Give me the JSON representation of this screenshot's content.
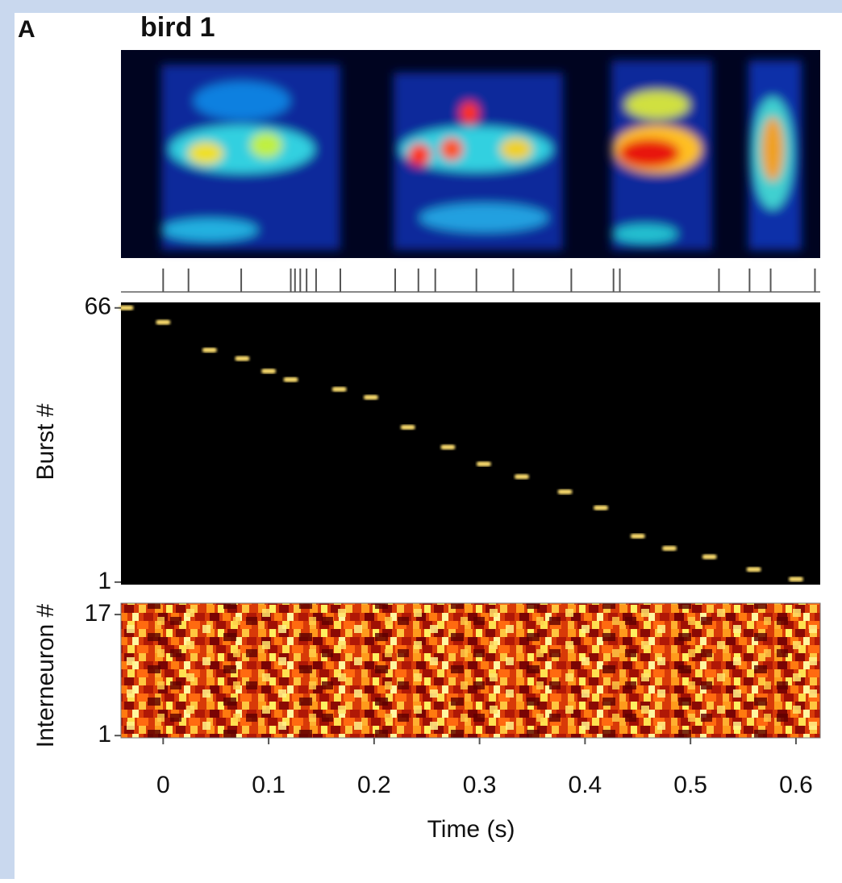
{
  "panel_label": "A",
  "title": "bird 1",
  "chart_data": [
    {
      "type": "event",
      "x": [
        0,
        0.024,
        0.074,
        0.121,
        0.125,
        0.13,
        0.136,
        0.145,
        0.168,
        0.22,
        0.242,
        0.258,
        0.297,
        0.332,
        0.387,
        0.427,
        0.433,
        0.527,
        0.556,
        0.576,
        0.618
      ],
      "xlim": [
        -0.04,
        0.623
      ],
      "color": "#555555"
    },
    {
      "type": "scatter",
      "ylabel": "Burst #",
      "x": [
        -0.035,
        0,
        0.044,
        0.075,
        0.1,
        0.121,
        0.167,
        0.197,
        0.232,
        0.27,
        0.304,
        0.34,
        0.381,
        0.415,
        0.45,
        0.48,
        0.518,
        0.56,
        0.6
      ],
      "y": [
        66,
        62.6,
        56,
        54,
        51,
        49,
        46.7,
        44.8,
        37.7,
        33,
        29,
        26,
        22.4,
        18.6,
        11.9,
        9,
        7,
        4,
        1.7
      ],
      "xlim": [
        -0.04,
        0.623
      ],
      "ylim": [
        0.4,
        67.3
      ],
      "yticks": [
        1,
        66
      ],
      "color": "#ffe070"
    },
    {
      "type": "heatmap",
      "ylabel": "Interneuron #",
      "xlabel": "Time (s)",
      "xlim": [
        -0.04,
        0.623
      ],
      "ylim": [
        0.7,
        18.5
      ],
      "yticks": [
        1,
        17
      ],
      "xticks": [
        0,
        0.1,
        0.2,
        0.3,
        0.4,
        0.5,
        0.6
      ]
    }
  ]
}
